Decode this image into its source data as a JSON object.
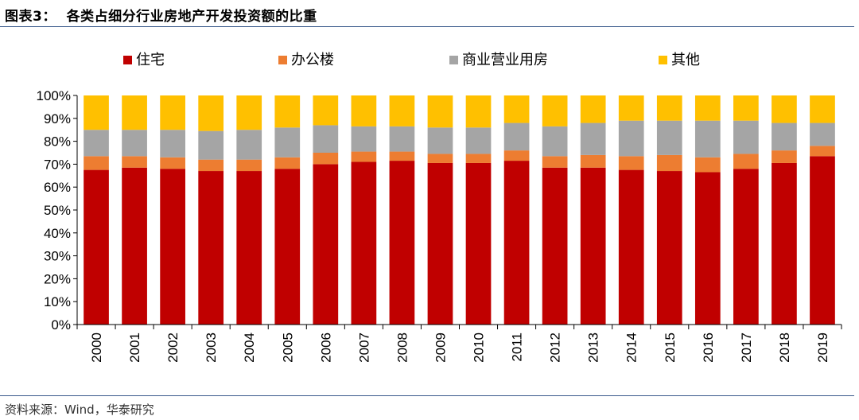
{
  "header": {
    "title": "图表3：  各类占细分行业房地产开发投资额的比重"
  },
  "footer": {
    "source": "资料来源：Wind，华泰研究"
  },
  "chart_data": {
    "type": "bar",
    "stacked": true,
    "categories": [
      "2000",
      "2001",
      "2002",
      "2003",
      "2004",
      "2005",
      "2006",
      "2007",
      "2008",
      "2009",
      "2010",
      "2011",
      "2012",
      "2013",
      "2014",
      "2015",
      "2016",
      "2017",
      "2018",
      "2019"
    ],
    "series": [
      {
        "name": "住宅",
        "color": "#c00000",
        "values": [
          67.5,
          68.5,
          68,
          67,
          67,
          68,
          70,
          71,
          71.5,
          70.5,
          70.5,
          71.5,
          68.5,
          68.5,
          67.5,
          67,
          66.5,
          68,
          70.5,
          73.5
        ]
      },
      {
        "name": "办公楼",
        "color": "#ed7d31",
        "values": [
          6,
          5,
          5,
          5,
          5,
          5,
          5,
          4.5,
          4,
          4,
          4,
          4.5,
          5,
          5.5,
          6,
          7,
          6.5,
          6.5,
          5.5,
          4.5
        ]
      },
      {
        "name": "商业营业用房",
        "color": "#a5a5a5",
        "values": [
          11.5,
          11.5,
          12,
          12.5,
          13,
          13,
          12,
          11,
          11,
          11.5,
          11.5,
          12,
          13,
          14,
          15.5,
          15,
          16,
          14.5,
          12,
          10
        ]
      },
      {
        "name": "其他",
        "color": "#ffc000",
        "values": [
          15,
          15,
          15,
          15.5,
          15,
          14,
          13,
          13.5,
          13.5,
          14,
          14,
          12,
          13.5,
          12,
          11,
          11,
          11,
          11,
          12,
          12
        ]
      }
    ],
    "yticks": [
      "0%",
      "10%",
      "20%",
      "30%",
      "40%",
      "50%",
      "60%",
      "70%",
      "80%",
      "90%",
      "100%"
    ],
    "ylim": [
      0,
      100
    ],
    "legend_position": "top",
    "grid": false
  }
}
